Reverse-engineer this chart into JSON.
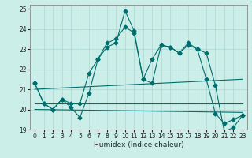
{
  "xlabel": "Humidex (Indice chaleur)",
  "background_color": "#cceee8",
  "grid_color": "#aad8d0",
  "line_color": "#006e6e",
  "xlim": [
    -0.5,
    23.5
  ],
  "ylim": [
    19,
    25.2
  ],
  "yticks": [
    19,
    20,
    21,
    22,
    23,
    24,
    25
  ],
  "xticks": [
    0,
    1,
    2,
    3,
    4,
    5,
    6,
    7,
    8,
    9,
    10,
    11,
    12,
    13,
    14,
    15,
    16,
    17,
    18,
    19,
    20,
    21,
    22,
    23
  ],
  "main_series": {
    "x": [
      0,
      1,
      2,
      3,
      4,
      5,
      6,
      7,
      8,
      9,
      10,
      11,
      12,
      13,
      14,
      15,
      16,
      17,
      18,
      19,
      20,
      21,
      22,
      23
    ],
    "y": [
      21.3,
      20.3,
      20.0,
      20.5,
      20.1,
      19.6,
      20.8,
      22.5,
      23.1,
      23.3,
      24.9,
      23.9,
      21.5,
      22.5,
      23.2,
      23.1,
      22.8,
      23.3,
      23.0,
      22.8,
      21.2,
      18.9,
      19.1,
      19.7
    ],
    "marker": "D",
    "marker_size": 2.5
  },
  "series2": {
    "x": [
      0,
      1,
      2,
      3,
      4,
      5,
      6,
      7,
      8,
      9,
      10,
      11,
      12,
      13,
      14,
      15,
      16,
      17,
      18,
      19,
      20,
      21,
      22,
      23
    ],
    "y": [
      21.3,
      20.3,
      20.0,
      20.5,
      20.3,
      20.3,
      21.8,
      22.5,
      23.3,
      23.5,
      24.1,
      23.8,
      21.5,
      21.3,
      23.2,
      23.1,
      22.8,
      23.2,
      23.0,
      21.5,
      19.8,
      19.3,
      19.5,
      19.7
    ],
    "marker": "D",
    "marker_size": 2.5
  },
  "trend_up": {
    "x": [
      0,
      23
    ],
    "y": [
      21.0,
      21.5
    ]
  },
  "trend_flat1": {
    "x": [
      0,
      23
    ],
    "y": [
      20.3,
      20.3
    ]
  },
  "trend_flat2": {
    "x": [
      0,
      23
    ],
    "y": [
      20.0,
      19.85
    ]
  }
}
